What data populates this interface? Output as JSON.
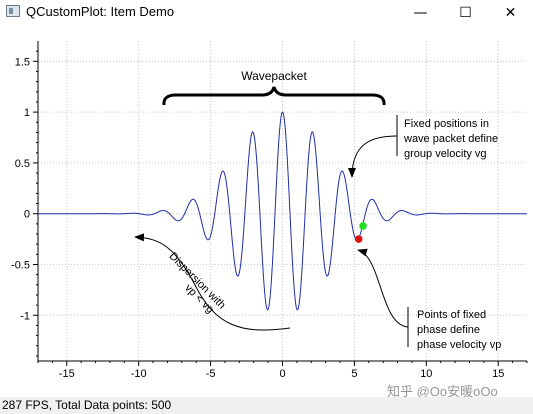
{
  "window": {
    "title": "QCustomPlot: Item Demo",
    "minimize_glyph": "—",
    "maximize_glyph": "☐",
    "close_glyph": "✕"
  },
  "status": {
    "text": "287 FPS, Total Data points: 500"
  },
  "watermark": "知乎 @Oo安暖oOo",
  "chart_data": {
    "type": "line",
    "series": [
      {
        "color": "#1f2fa8",
        "function": "exp(-x^2/20) * cos(3x)"
      }
    ],
    "xlim": [
      -17,
      17
    ],
    "ylim": [
      -1.45,
      1.7
    ],
    "x_ticks": [
      -15,
      -10,
      -5,
      0,
      5,
      10,
      15
    ],
    "x_tick_labels": [
      "-15",
      "-10",
      "-5",
      "0",
      "5",
      "10",
      "15"
    ],
    "y_ticks": [
      -1,
      -0.5,
      0,
      0.5,
      1,
      1.5
    ],
    "y_tick_labels": [
      "-1",
      "-0.5",
      "0",
      "0.5",
      "1",
      "1.5"
    ],
    "grid": true,
    "annotations": {
      "wavepacket_label": "Wavepacket",
      "group_velocity_lines": [
        "Fixed positions in",
        "wave packet define",
        "group velocity vg"
      ],
      "phase_velocity_lines": [
        "Points of fixed",
        "phase define",
        "phase velocity vp"
      ],
      "dispersion_lines": [
        "Dispersion with",
        "vp < vg"
      ],
      "points": [
        {
          "name": "group",
          "x": 5.6,
          "y": -0.12,
          "color": "#22dd22"
        },
        {
          "name": "phase",
          "x": 5.3,
          "y": -0.25,
          "color": "#dd1111"
        }
      ]
    }
  }
}
